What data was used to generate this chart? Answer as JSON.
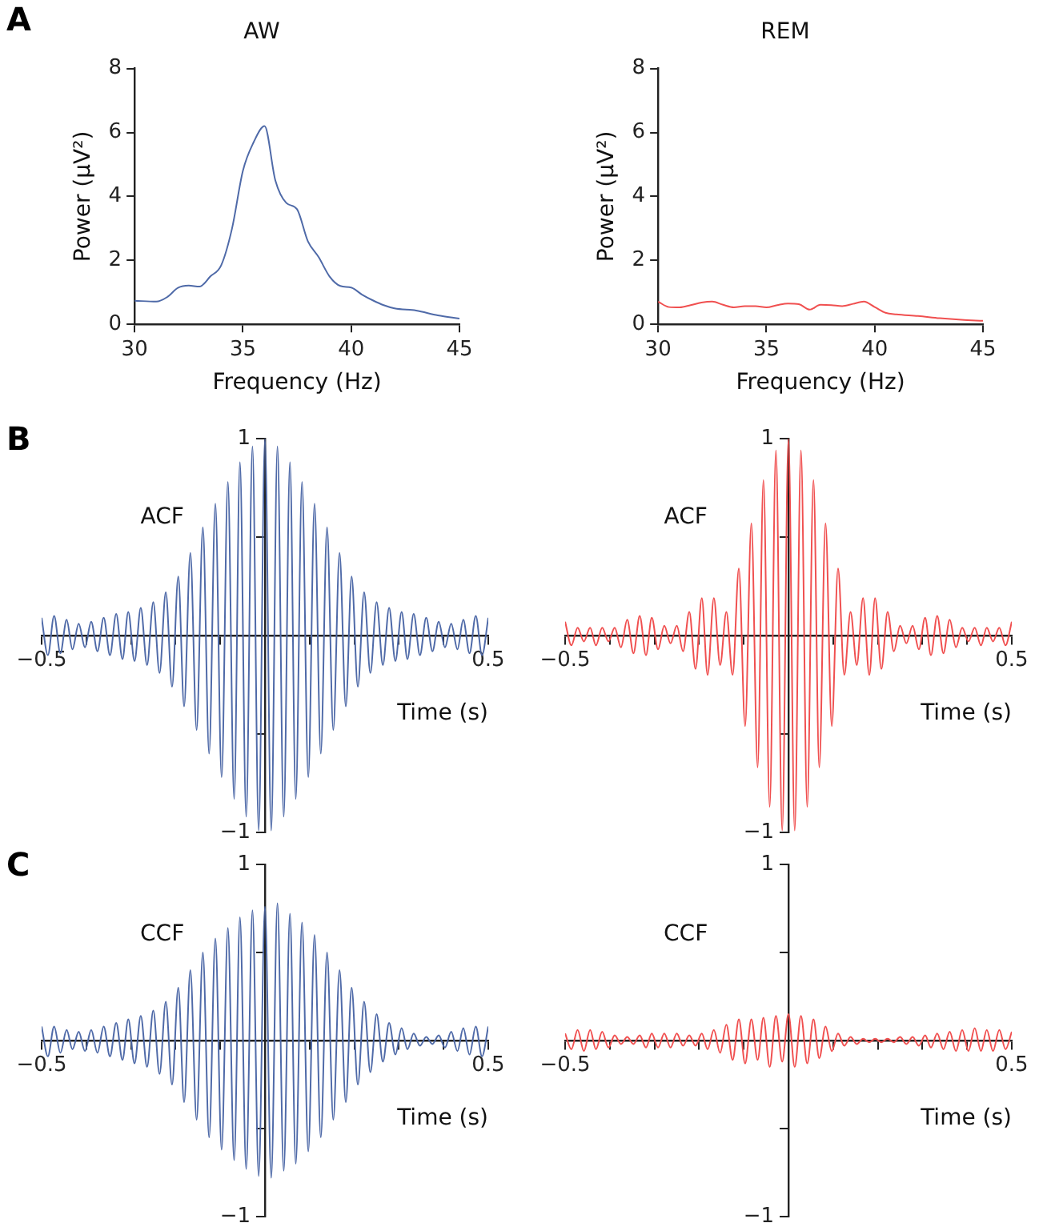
{
  "chart_data": [
    {
      "type": "line",
      "title": "AW",
      "xlabel": "Frequency (Hz)",
      "ylabel": "Power (μV²)",
      "annotations": [
        "A"
      ],
      "xlim": [
        30,
        45
      ],
      "xticks": [
        30,
        35,
        40,
        45
      ],
      "ylim": [
        0,
        8
      ],
      "yticks": [
        0,
        2,
        4,
        6,
        8
      ],
      "series": [
        {
          "color": "#4f6aa8",
          "x": [
            30,
            31,
            31.5,
            32,
            32.5,
            33,
            33.5,
            34,
            34.5,
            35,
            35.5,
            36,
            36.5,
            37,
            37.5,
            38,
            38.5,
            39,
            39.5,
            40,
            40.5,
            41,
            41.5,
            42,
            43,
            44,
            45
          ],
          "values": [
            0.74,
            0.71,
            0.85,
            1.14,
            1.21,
            1.18,
            1.5,
            1.85,
            3.0,
            4.8,
            5.7,
            6.2,
            4.5,
            3.8,
            3.6,
            2.6,
            2.1,
            1.5,
            1.2,
            1.15,
            0.93,
            0.75,
            0.6,
            0.5,
            0.43,
            0.28,
            0.18
          ]
        }
      ]
    },
    {
      "type": "line",
      "title": "REM",
      "xlabel": "Frequency (Hz)",
      "ylabel": "Power (μV²)",
      "xlim": [
        30,
        45
      ],
      "xticks": [
        30,
        35,
        40,
        45
      ],
      "ylim": [
        0,
        8
      ],
      "yticks": [
        0,
        2,
        4,
        6,
        8
      ],
      "series": [
        {
          "color": "#f05050",
          "x": [
            30,
            30.5,
            31,
            31.5,
            32,
            32.5,
            33,
            33.5,
            34,
            34.5,
            35,
            35.5,
            36,
            36.5,
            37,
            37.5,
            38,
            38.5,
            39,
            39.5,
            40,
            40.5,
            41,
            42,
            43,
            44,
            45
          ],
          "values": [
            0.71,
            0.54,
            0.53,
            0.6,
            0.68,
            0.71,
            0.61,
            0.53,
            0.57,
            0.57,
            0.53,
            0.6,
            0.65,
            0.63,
            0.46,
            0.61,
            0.6,
            0.57,
            0.64,
            0.71,
            0.54,
            0.36,
            0.31,
            0.26,
            0.19,
            0.14,
            0.11
          ]
        }
      ]
    },
    {
      "type": "line",
      "xlabel": "Time (s)",
      "ylabel": "ACF",
      "annotations": [
        "B"
      ],
      "xlim": [
        -0.5,
        0.5
      ],
      "xticks": [
        {
          "value": -0.5,
          "label": "−0.5"
        },
        {
          "value": -0.4,
          "label": null
        },
        {
          "value": -0.3,
          "label": null
        },
        {
          "value": -0.2,
          "label": null
        },
        {
          "value": -0.1,
          "label": null
        },
        {
          "value": 0.1,
          "label": null
        },
        {
          "value": 0.2,
          "label": null
        },
        {
          "value": 0.3,
          "label": null
        },
        {
          "value": 0.4,
          "label": null
        },
        0.5
      ],
      "ylim": [
        -1,
        1
      ],
      "yticks": [
        {
          "value": -1,
          "label": "−1"
        },
        {
          "value": -0.5,
          "label": null
        },
        {
          "value": 0.5,
          "label": null
        },
        1
      ],
      "x": [
        -0.5,
        -0.486,
        -0.472,
        -0.458,
        -0.444,
        -0.431,
        -0.417,
        -0.403,
        -0.389,
        -0.375,
        -0.361,
        -0.347,
        -0.333,
        -0.319,
        -0.306,
        -0.292,
        -0.278,
        -0.264,
        -0.25,
        -0.236,
        -0.222,
        -0.208,
        -0.194,
        -0.181,
        -0.167,
        -0.153,
        -0.139,
        -0.125,
        -0.111,
        -0.097,
        -0.083,
        -0.069,
        -0.056,
        -0.042,
        -0.028,
        -0.014,
        0,
        0.014,
        0.028,
        0.042,
        0.056,
        0.069,
        0.083,
        0.097,
        0.111,
        0.125,
        0.139,
        0.153,
        0.167,
        0.181,
        0.194,
        0.208,
        0.222,
        0.236,
        0.25,
        0.264,
        0.278,
        0.292,
        0.306,
        0.319,
        0.333,
        0.347,
        0.361,
        0.375,
        0.389,
        0.403,
        0.417,
        0.431,
        0.444,
        0.458,
        0.472,
        0.486,
        0.5
      ],
      "series": [
        {
          "color": "#4f6aa8",
          "values": [
            0.09,
            -0.1,
            0.1,
            -0.09,
            0.08,
            -0.07,
            0.06,
            -0.06,
            0.07,
            -0.08,
            0.09,
            -0.1,
            0.11,
            -0.12,
            0.12,
            -0.13,
            0.14,
            -0.15,
            0.17,
            -0.19,
            0.22,
            -0.26,
            0.3,
            -0.36,
            0.42,
            -0.48,
            0.55,
            -0.6,
            0.67,
            -0.72,
            0.78,
            -0.83,
            0.88,
            -0.92,
            0.96,
            -0.99,
            1.0,
            -0.99,
            0.96,
            -0.92,
            0.88,
            -0.83,
            0.78,
            -0.72,
            0.67,
            -0.6,
            0.55,
            -0.48,
            0.42,
            -0.36,
            0.3,
            -0.26,
            0.22,
            -0.19,
            0.17,
            -0.15,
            0.14,
            -0.13,
            0.12,
            -0.12,
            0.11,
            -0.1,
            0.09,
            -0.08,
            0.07,
            -0.06,
            0.06,
            -0.07,
            0.08,
            -0.09,
            0.1,
            -0.1,
            0.09
          ]
        }
      ]
    },
    {
      "type": "line",
      "xlabel": "Time (s)",
      "ylabel": "ACF",
      "xlim": [
        -0.5,
        0.5
      ],
      "xticks": [
        {
          "value": -0.5,
          "label": "−0.5"
        },
        {
          "value": -0.4,
          "label": null
        },
        {
          "value": -0.3,
          "label": null
        },
        {
          "value": -0.2,
          "label": null
        },
        {
          "value": -0.1,
          "label": null
        },
        {
          "value": 0.1,
          "label": null
        },
        {
          "value": 0.2,
          "label": null
        },
        {
          "value": 0.3,
          "label": null
        },
        {
          "value": 0.4,
          "label": null
        },
        0.5
      ],
      "ylim": [
        -1,
        1
      ],
      "yticks": [
        {
          "value": -1,
          "label": "−1"
        },
        {
          "value": -0.5,
          "label": null
        },
        {
          "value": 0.5,
          "label": null
        },
        1
      ],
      "x": [
        -0.5,
        -0.486,
        -0.472,
        -0.458,
        -0.444,
        -0.431,
        -0.417,
        -0.403,
        -0.389,
        -0.375,
        -0.361,
        -0.347,
        -0.333,
        -0.319,
        -0.306,
        -0.292,
        -0.278,
        -0.264,
        -0.25,
        -0.236,
        -0.222,
        -0.208,
        -0.194,
        -0.181,
        -0.167,
        -0.153,
        -0.139,
        -0.125,
        -0.111,
        -0.097,
        -0.083,
        -0.069,
        -0.056,
        -0.042,
        -0.028,
        -0.014,
        0,
        0.014,
        0.028,
        0.042,
        0.056,
        0.069,
        0.083,
        0.097,
        0.111,
        0.125,
        0.139,
        0.153,
        0.167,
        0.181,
        0.194,
        0.208,
        0.222,
        0.236,
        0.25,
        0.264,
        0.278,
        0.292,
        0.306,
        0.319,
        0.333,
        0.347,
        0.361,
        0.375,
        0.389,
        0.403,
        0.417,
        0.431,
        0.444,
        0.458,
        0.472,
        0.486,
        0.5
      ],
      "series": [
        {
          "color": "#f05050",
          "values": [
            0.07,
            -0.05,
            0.04,
            -0.03,
            0.04,
            -0.05,
            0.04,
            -0.03,
            0.04,
            -0.06,
            0.08,
            -0.09,
            0.1,
            -0.1,
            0.09,
            -0.07,
            0.05,
            -0.04,
            0.05,
            -0.08,
            0.12,
            -0.17,
            0.19,
            -0.2,
            0.19,
            -0.15,
            0.12,
            -0.2,
            0.34,
            -0.46,
            0.57,
            -0.67,
            0.79,
            -0.87,
            0.94,
            -0.99,
            1.0,
            -0.99,
            0.94,
            -0.87,
            0.79,
            -0.67,
            0.57,
            -0.46,
            0.34,
            -0.2,
            0.12,
            -0.15,
            0.19,
            -0.2,
            0.19,
            -0.17,
            0.12,
            -0.08,
            0.05,
            -0.04,
            0.05,
            -0.07,
            0.09,
            -0.1,
            0.1,
            -0.09,
            0.08,
            -0.06,
            0.04,
            -0.03,
            0.04,
            -0.05,
            0.04,
            -0.03,
            0.04,
            -0.05,
            0.07
          ]
        }
      ]
    },
    {
      "type": "line",
      "xlabel": "Time (s)",
      "ylabel": "CCF",
      "annotations": [
        "C"
      ],
      "xlim": [
        -0.5,
        0.5
      ],
      "xticks": [
        {
          "value": -0.5,
          "label": "−0.5"
        },
        {
          "value": -0.4,
          "label": null
        },
        {
          "value": -0.3,
          "label": null
        },
        {
          "value": -0.2,
          "label": null
        },
        {
          "value": -0.1,
          "label": null
        },
        {
          "value": 0.1,
          "label": null
        },
        {
          "value": 0.2,
          "label": null
        },
        {
          "value": 0.3,
          "label": null
        },
        {
          "value": 0.4,
          "label": null
        },
        0.5
      ],
      "ylim": [
        -1,
        1
      ],
      "yticks": [
        {
          "value": -1,
          "label": "−1"
        },
        {
          "value": -0.5,
          "label": null
        },
        {
          "value": 0.5,
          "label": null
        },
        1
      ],
      "x": [
        -0.5,
        -0.486,
        -0.472,
        -0.458,
        -0.444,
        -0.431,
        -0.417,
        -0.403,
        -0.389,
        -0.375,
        -0.361,
        -0.347,
        -0.333,
        -0.319,
        -0.306,
        -0.292,
        -0.278,
        -0.264,
        -0.25,
        -0.236,
        -0.222,
        -0.208,
        -0.194,
        -0.181,
        -0.167,
        -0.153,
        -0.139,
        -0.125,
        -0.111,
        -0.097,
        -0.083,
        -0.069,
        -0.056,
        -0.042,
        -0.028,
        -0.014,
        0,
        0.014,
        0.028,
        0.042,
        0.056,
        0.069,
        0.083,
        0.097,
        0.111,
        0.125,
        0.139,
        0.153,
        0.167,
        0.181,
        0.194,
        0.208,
        0.222,
        0.236,
        0.25,
        0.264,
        0.278,
        0.292,
        0.306,
        0.319,
        0.333,
        0.347,
        0.361,
        0.375,
        0.389,
        0.403,
        0.417,
        0.431,
        0.444,
        0.458,
        0.472,
        0.486,
        0.5
      ],
      "series": [
        {
          "color": "#4f6aa8",
          "values": [
            0.08,
            -0.09,
            0.08,
            -0.07,
            0.06,
            -0.05,
            0.05,
            -0.06,
            0.06,
            -0.07,
            0.08,
            -0.09,
            0.1,
            -0.11,
            0.12,
            -0.13,
            0.14,
            -0.15,
            0.17,
            -0.19,
            0.22,
            -0.25,
            0.3,
            -0.35,
            0.4,
            -0.45,
            0.5,
            -0.55,
            0.58,
            -0.62,
            0.64,
            -0.68,
            0.7,
            -0.73,
            0.74,
            -0.77,
            0.76,
            -0.78,
            0.78,
            -0.74,
            0.72,
            -0.7,
            0.67,
            -0.63,
            0.6,
            -0.55,
            0.5,
            -0.45,
            0.4,
            -0.35,
            0.3,
            -0.25,
            0.22,
            -0.18,
            0.15,
            -0.12,
            0.1,
            -0.08,
            0.07,
            -0.05,
            0.04,
            -0.03,
            0.02,
            -0.02,
            0.03,
            -0.04,
            0.05,
            -0.06,
            0.07,
            -0.08,
            0.08,
            -0.09,
            0.08
          ]
        }
      ]
    },
    {
      "type": "line",
      "xlabel": "Time (s)",
      "ylabel": "CCF",
      "xlim": [
        -0.5,
        0.5
      ],
      "xticks": [
        {
          "value": -0.5,
          "label": "−0.5"
        },
        {
          "value": -0.4,
          "label": null
        },
        {
          "value": -0.3,
          "label": null
        },
        {
          "value": -0.2,
          "label": null
        },
        {
          "value": -0.1,
          "label": null
        },
        {
          "value": 0.1,
          "label": null
        },
        {
          "value": 0.2,
          "label": null
        },
        {
          "value": 0.3,
          "label": null
        },
        {
          "value": 0.4,
          "label": null
        },
        0.5
      ],
      "ylim": [
        -1,
        1
      ],
      "yticks": [
        {
          "value": -1,
          "label": "−1"
        },
        {
          "value": -0.5,
          "label": null
        },
        {
          "value": 0.5,
          "label": null
        },
        1
      ],
      "x": [
        -0.5,
        -0.486,
        -0.472,
        -0.458,
        -0.444,
        -0.431,
        -0.417,
        -0.403,
        -0.389,
        -0.375,
        -0.361,
        -0.347,
        -0.333,
        -0.319,
        -0.306,
        -0.292,
        -0.278,
        -0.264,
        -0.25,
        -0.236,
        -0.222,
        -0.208,
        -0.194,
        -0.181,
        -0.167,
        -0.153,
        -0.139,
        -0.125,
        -0.111,
        -0.097,
        -0.083,
        -0.069,
        -0.056,
        -0.042,
        -0.028,
        -0.014,
        0,
        0.014,
        0.028,
        0.042,
        0.056,
        0.069,
        0.083,
        0.097,
        0.111,
        0.125,
        0.139,
        0.153,
        0.167,
        0.181,
        0.194,
        0.208,
        0.222,
        0.236,
        0.25,
        0.264,
        0.278,
        0.292,
        0.306,
        0.319,
        0.333,
        0.347,
        0.361,
        0.375,
        0.389,
        0.403,
        0.417,
        0.431,
        0.444,
        0.458,
        0.472,
        0.486,
        0.5
      ],
      "series": [
        {
          "color": "#f05050",
          "values": [
            0.04,
            -0.05,
            0.06,
            -0.06,
            0.06,
            -0.05,
            0.05,
            -0.04,
            0.03,
            -0.02,
            0.02,
            -0.02,
            0.03,
            -0.04,
            0.04,
            -0.04,
            0.04,
            -0.04,
            0.04,
            -0.03,
            0.03,
            -0.03,
            0.04,
            -0.05,
            0.06,
            -0.07,
            0.09,
            -0.11,
            0.12,
            -0.13,
            0.12,
            -0.11,
            0.13,
            -0.15,
            0.14,
            -0.12,
            0.15,
            -0.15,
            0.14,
            -0.13,
            0.12,
            -0.1,
            0.08,
            -0.06,
            0.04,
            -0.03,
            0.02,
            -0.02,
            0.01,
            -0.01,
            0.01,
            -0.01,
            0.01,
            -0.01,
            0.02,
            -0.02,
            0.02,
            -0.03,
            0.03,
            -0.04,
            0.04,
            -0.05,
            0.05,
            -0.06,
            0.06,
            -0.06,
            0.07,
            -0.06,
            0.06,
            -0.06,
            0.06,
            -0.05,
            0.05
          ]
        }
      ]
    }
  ]
}
